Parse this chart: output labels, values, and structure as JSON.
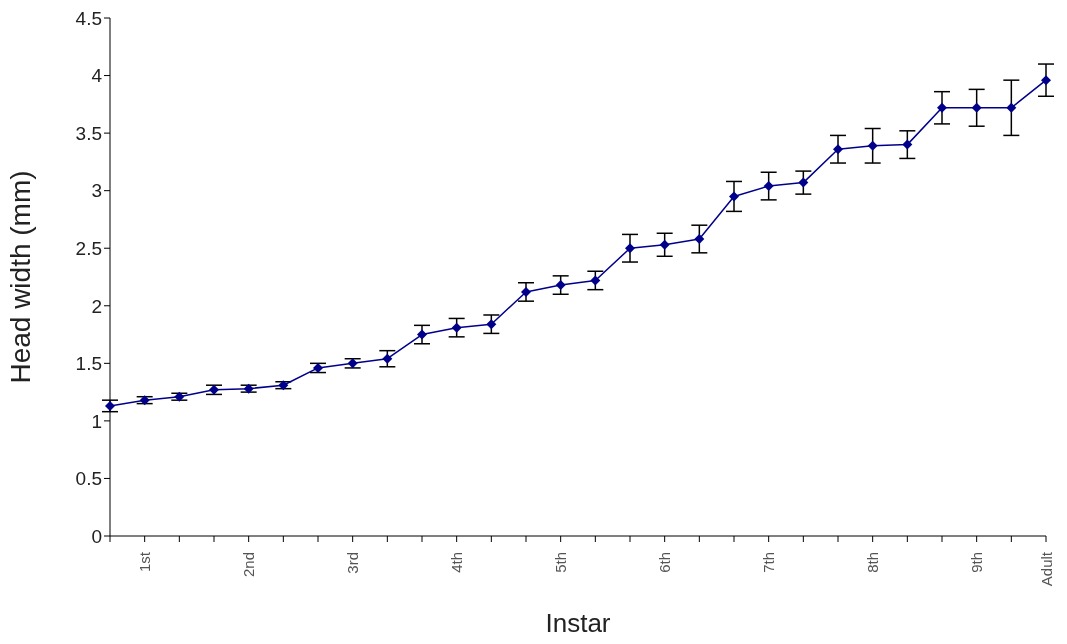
{
  "chart_data": {
    "type": "line",
    "xlabel": "Instar",
    "ylabel": "Head width (mm)",
    "categories": [
      null,
      "1st",
      null,
      null,
      "2nd",
      null,
      null,
      "3rd",
      null,
      null,
      "4th",
      null,
      null,
      "5th",
      null,
      null,
      "6th",
      null,
      null,
      "7th",
      null,
      null,
      "8th",
      null,
      null,
      "9th",
      null,
      "Adult"
    ],
    "series": [
      {
        "color": "#00008b",
        "values": [
          1.13,
          1.18,
          1.21,
          1.27,
          1.28,
          1.31,
          1.46,
          1.5,
          1.54,
          1.75,
          1.81,
          1.84,
          2.12,
          2.18,
          2.22,
          2.5,
          2.53,
          2.58,
          2.95,
          3.04,
          3.07,
          3.36,
          3.39,
          3.4,
          3.72,
          3.72,
          3.72,
          3.96
        ],
        "errors": [
          0.05,
          0.03,
          0.03,
          0.04,
          0.03,
          0.03,
          0.04,
          0.04,
          0.07,
          0.08,
          0.08,
          0.08,
          0.08,
          0.08,
          0.08,
          0.12,
          0.1,
          0.12,
          0.13,
          0.12,
          0.1,
          0.12,
          0.15,
          0.12,
          0.14,
          0.16,
          0.24,
          0.14
        ]
      }
    ],
    "ylim": [
      0,
      4.5
    ],
    "yticks": [
      0,
      0.5,
      1,
      1.5,
      2,
      2.5,
      3,
      3.5,
      4,
      4.5
    ],
    "grid": false,
    "legend": false,
    "marker": "diamond",
    "line_style": "solid"
  }
}
